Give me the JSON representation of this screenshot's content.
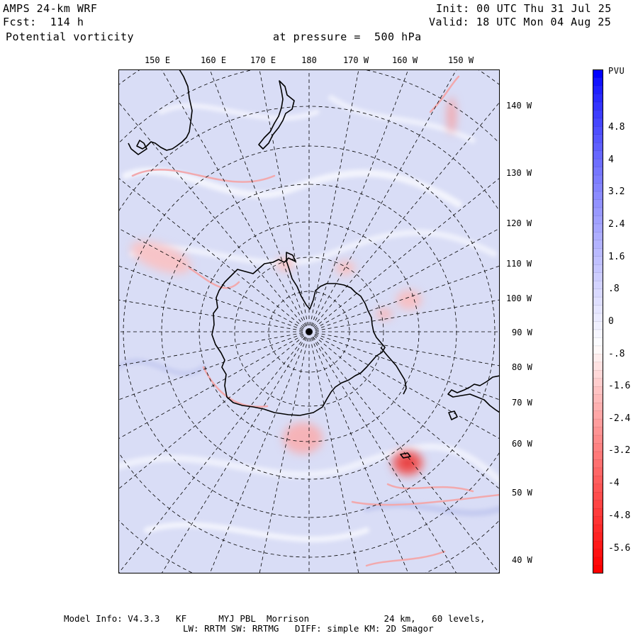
{
  "header": {
    "model": "AMPS 24-km WRF",
    "forecast": "Fcst:  114 h",
    "field": "Potential vorticity",
    "level": "at pressure =  500 hPa",
    "init": "Init: 00 UTC Thu 31 Jul 25",
    "valid": "Valid: 18 UTC Mon 04 Aug 25"
  },
  "top_lon_labels": [
    "150 E",
    "160 E",
    "170 E",
    "180",
    "170 W",
    "160 W",
    "150 W"
  ],
  "right_lon_labels": [
    "140 W",
    "130 W",
    "120 W",
    "110 W",
    "100 W",
    "90 W",
    "80 W",
    "70 W",
    "60 W",
    "50 W",
    "40 W"
  ],
  "colorbar": {
    "units": "PVU",
    "ticks": [
      "4.8",
      "4",
      "3.2",
      "2.4",
      "1.6",
      ".8",
      "0",
      "-.8",
      "-1.6",
      "-2.4",
      "-3.2",
      "-4",
      "-4.8",
      "-5.6"
    ],
    "colors": {
      "max_blue": "#0000ff",
      "min_red": "#ff0000",
      "neutral": "#ffffff"
    }
  },
  "footer": {
    "line1": "Model Info: V4.3.3   KF      MYJ PBL  Morrison              24 km,   60 levels,",
    "line2": "LW: RRTM SW: RRTMG   DIFF: simple KM: 2D Smagor"
  },
  "map": {
    "projection": "polar-stereographic-south",
    "background_color": "#d8dcf6",
    "coastline_color": "#000000",
    "grid_color": "#000000"
  }
}
